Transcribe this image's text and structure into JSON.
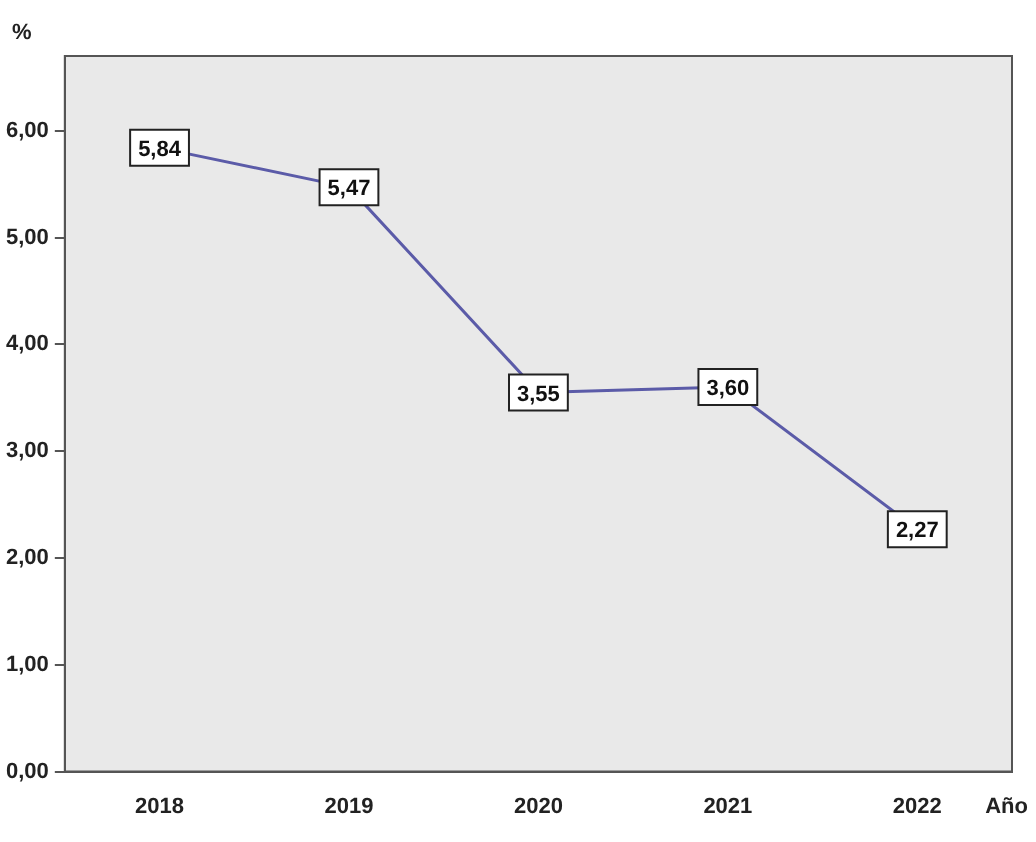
{
  "chart_data": {
    "type": "line",
    "xlabel": "Año",
    "ylabel": "%",
    "categories": [
      "2018",
      "2019",
      "2020",
      "2021",
      "2022"
    ],
    "series": [
      {
        "color": "#5b5ba8",
        "values": [
          5.84,
          5.47,
          3.55,
          3.6,
          2.27
        ]
      }
    ],
    "value_labels": [
      "5,84",
      "5,47",
      "3,55",
      "3,60",
      "2,27"
    ],
    "ylim": [
      0,
      6.7
    ],
    "yticks": [
      {
        "value": 0,
        "label": "0,00"
      },
      {
        "value": 1,
        "label": "1,00"
      },
      {
        "value": 2,
        "label": "2,00"
      },
      {
        "value": 3,
        "label": "3,00"
      },
      {
        "value": 4,
        "label": "4,00"
      },
      {
        "value": 5,
        "label": "5,00"
      },
      {
        "value": 6,
        "label": "6,00"
      }
    ],
    "grid": false,
    "legend": false,
    "marker": "square",
    "line_style": "solid"
  }
}
